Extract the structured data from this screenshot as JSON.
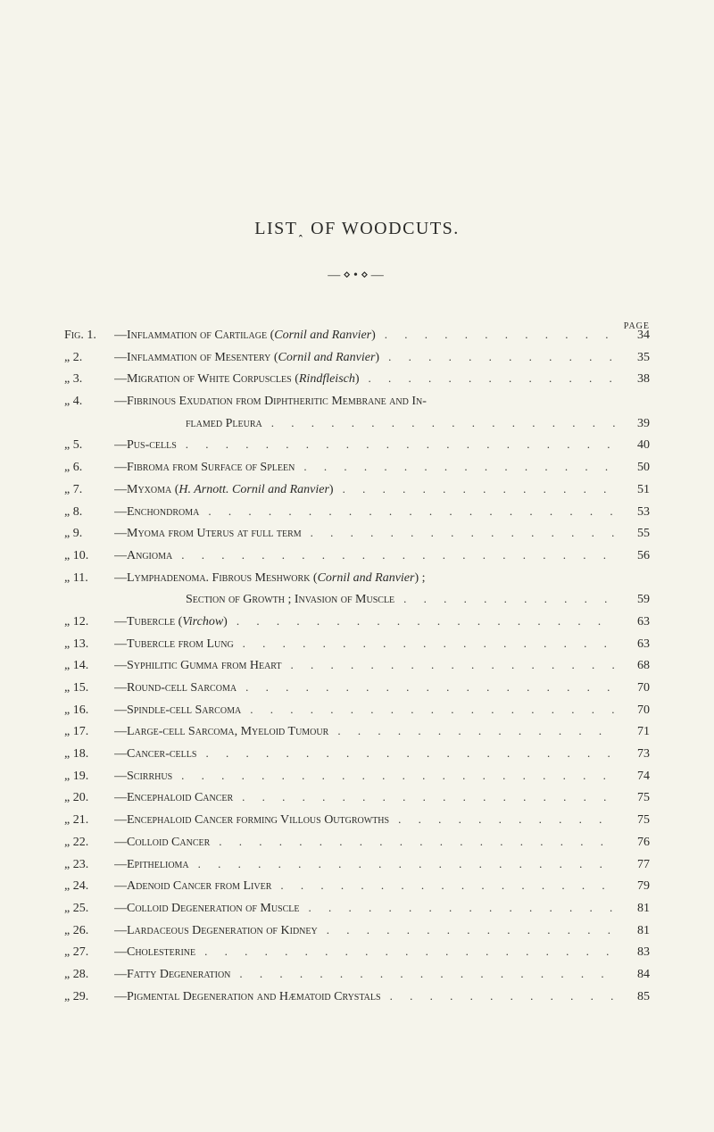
{
  "title": "LIST˰ OF WOODCUTS.",
  "ornament": "—⋄•⋄—",
  "pageLabel": "PAGE",
  "leaderDots": ". . . . . . . . . . . . . . . . . . . . . . . . . . . . . . . . . . . . . . . . . . . . .",
  "entries": [
    {
      "label": "Fig. 1.",
      "text": "—Inflammation of Cartilage (",
      "italic": "Cornil and Ranvier",
      "after": ")",
      "page": "34"
    },
    {
      "label": "„    2.",
      "text": "—Inflammation of Mesentery (",
      "italic": "Cornil and Ranvier",
      "after": ")",
      "page": "35"
    },
    {
      "label": "„    3.",
      "text": "—Migration of White Corpuscles (",
      "italic": "Rindfleisch",
      "after": ")",
      "page": "38"
    },
    {
      "label": "„    4.",
      "text": "—Fibrinous Exudation from Diphtheritic Membrane and In-",
      "page": "",
      "noleader": true
    },
    {
      "label": "",
      "text": "flamed Pleura",
      "cont": true,
      "page": "39"
    },
    {
      "label": "„    5.",
      "text": "—Pus-cells",
      "page": "40"
    },
    {
      "label": "„    6.",
      "text": "—Fibroma from Surface of Spleen",
      "page": "50"
    },
    {
      "label": "„    7.",
      "text": "—Myxoma (",
      "italic": "H. Arnott.   Cornil and Ranvier",
      "after": ")",
      "page": "51"
    },
    {
      "label": "„    8.",
      "text": "—Enchondroma",
      "page": "53"
    },
    {
      "label": "„    9.",
      "text": "—Myoma from Uterus at full term",
      "page": "55"
    },
    {
      "label": "„   10.",
      "text": "—Angioma",
      "page": "56"
    },
    {
      "label": "„   11.",
      "text": "—Lymphadenoma.   Fibrous Meshwork (",
      "italic": "Cornil and Ranvier",
      "after": ") ;",
      "page": "",
      "noleader": true
    },
    {
      "label": "",
      "text": "Section of Growth ; Invasion of Muscle",
      "cont": true,
      "page": "59"
    },
    {
      "label": "„   12.",
      "text": "—Tubercle (",
      "italic": "Virchow",
      "after": ")",
      "page": "63"
    },
    {
      "label": "„   13.",
      "text": "—Tubercle from Lung",
      "page": "63"
    },
    {
      "label": "„   14.",
      "text": "—Syphilitic Gumma from Heart",
      "page": "68"
    },
    {
      "label": "„   15.",
      "text": "—Round-cell Sarcoma",
      "page": "70"
    },
    {
      "label": "„   16.",
      "text": "—Spindle-cell Sarcoma",
      "page": "70"
    },
    {
      "label": "„   17.",
      "text": "—Large-cell Sarcoma, Myeloid Tumour",
      "page": "71"
    },
    {
      "label": "„   18.",
      "text": "—Cancer-cells",
      "page": "73"
    },
    {
      "label": "„   19.",
      "text": "—Scirrhus",
      "page": "74"
    },
    {
      "label": "„   20.",
      "text": "—Encephaloid Cancer",
      "page": "75"
    },
    {
      "label": "„   21.",
      "text": "—Encephaloid Cancer forming Villous Outgrowths",
      "page": "75"
    },
    {
      "label": "„   22.",
      "text": "—Colloid Cancer",
      "page": "76"
    },
    {
      "label": "„   23.",
      "text": "—Epithelioma",
      "page": "77"
    },
    {
      "label": "„   24.",
      "text": "—Adenoid Cancer from Liver",
      "page": "79"
    },
    {
      "label": "„   25.",
      "text": "—Colloid Degeneration of Muscle",
      "page": "81"
    },
    {
      "label": "„   26.",
      "text": "—Lardaceous Degeneration of Kidney",
      "page": "81"
    },
    {
      "label": "„   27.",
      "text": "—Cholesterine",
      "page": "83"
    },
    {
      "label": "„   28.",
      "text": "—Fatty Degeneration",
      "page": "84"
    },
    {
      "label": "„   29.",
      "text": "—Pigmental Degeneration and Hæmatoid Crystals",
      "page": "85"
    }
  ]
}
